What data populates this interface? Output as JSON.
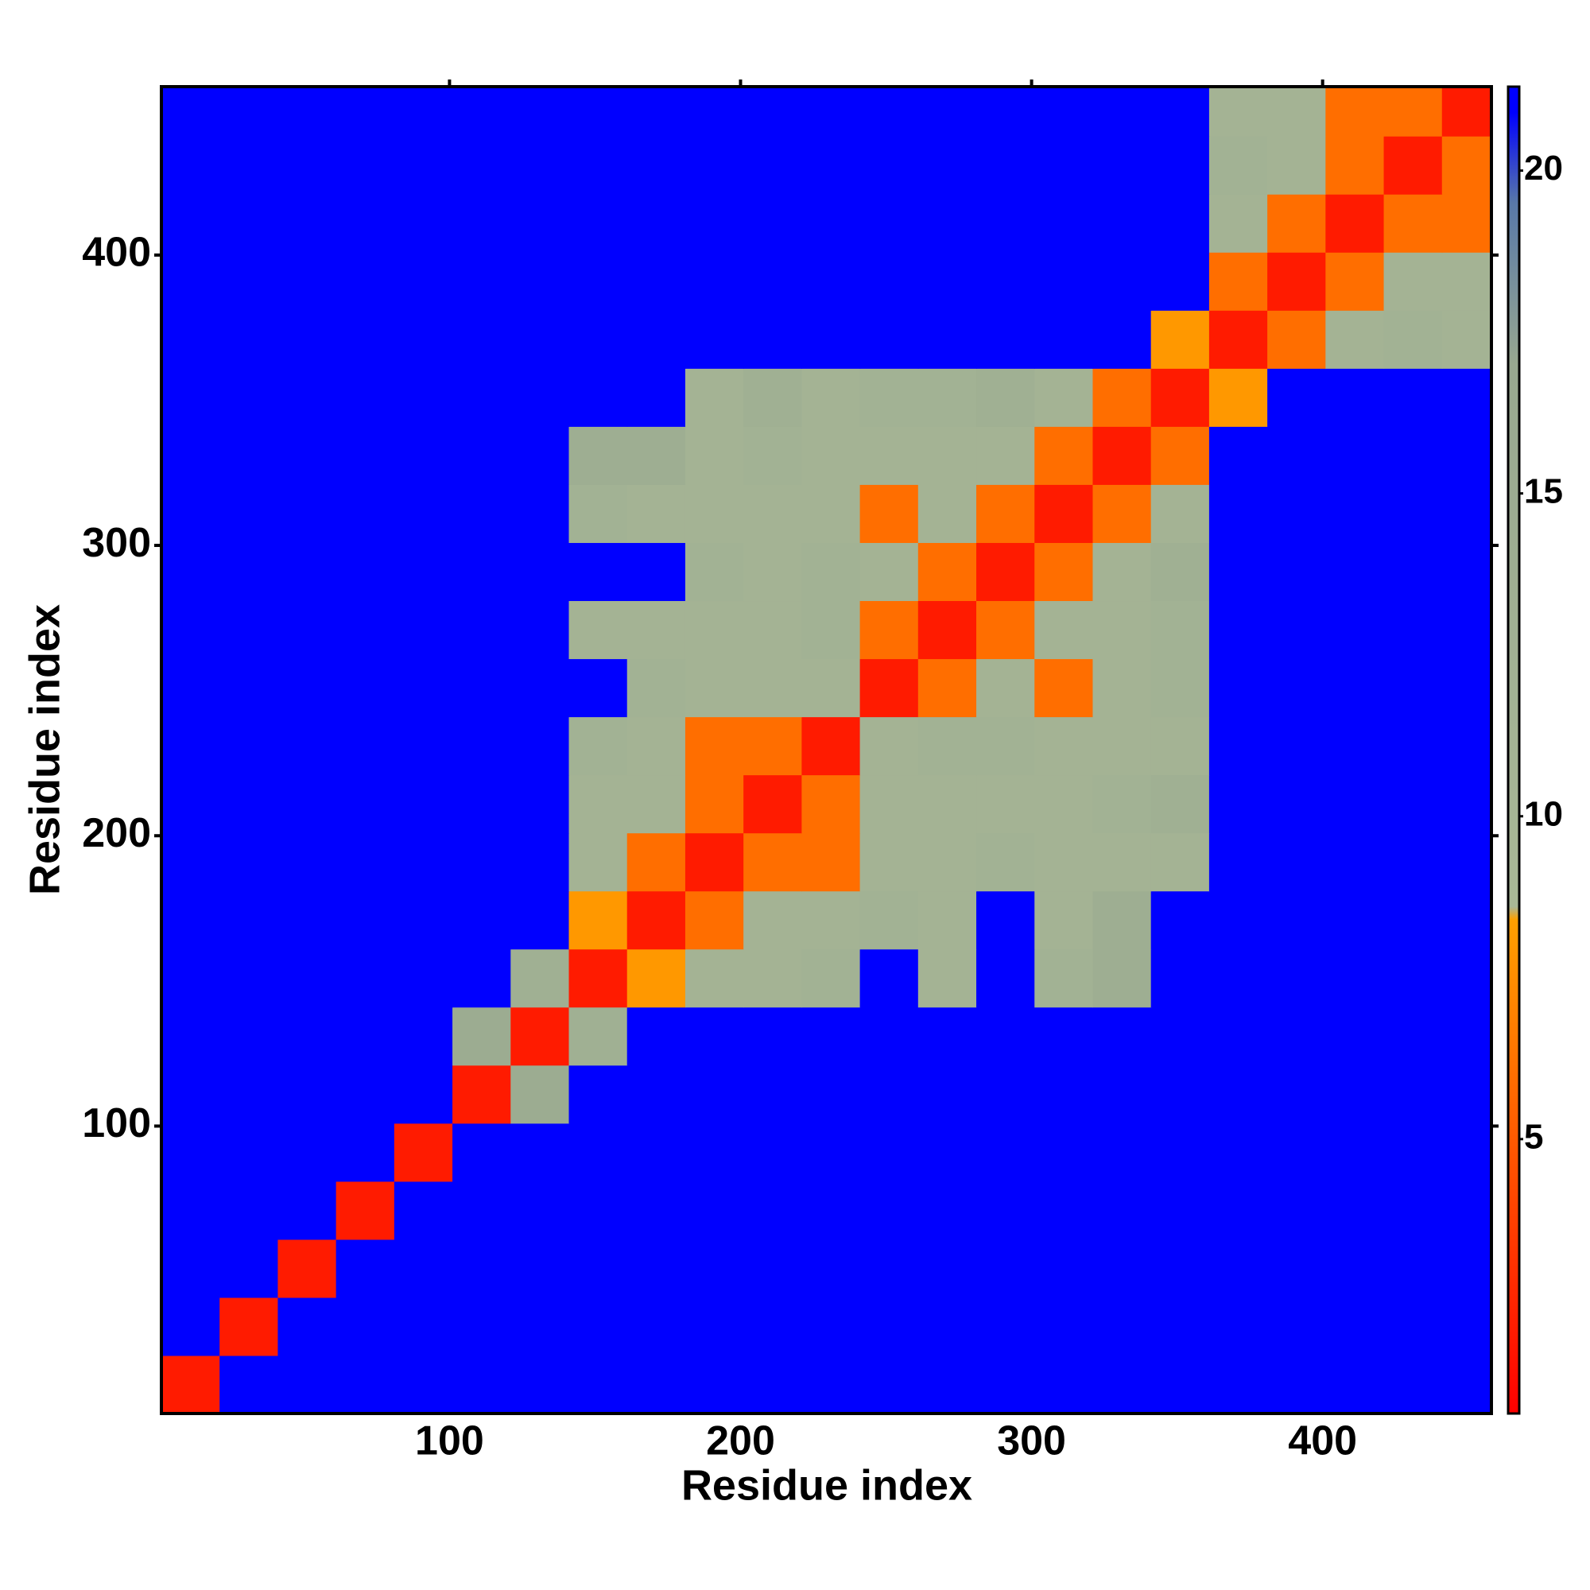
{
  "chart_data": {
    "type": "heatmap",
    "xlabel": "Residue index",
    "ylabel": "Residue index",
    "x": [
      1,
      21,
      41,
      61,
      81,
      101,
      121,
      141,
      161,
      181,
      201,
      221,
      241,
      261,
      281,
      301,
      321,
      341,
      361,
      381,
      401,
      421,
      441,
      458
    ],
    "y": [
      1,
      21,
      41,
      61,
      81,
      101,
      121,
      141,
      161,
      181,
      201,
      221,
      241,
      261,
      281,
      301,
      321,
      341,
      361,
      381,
      401,
      421,
      441,
      458
    ],
    "xlim": [
      1,
      458
    ],
    "ylim": [
      1,
      458
    ],
    "xticks": [
      100,
      200,
      300,
      400
    ],
    "yticks": [
      100,
      200,
      300,
      400
    ],
    "zlim": [
      0.75,
      21.3
    ],
    "zticks": [
      5,
      10,
      15,
      20
    ],
    "colorscale": [
      {
        "value": 0.75,
        "color": "#ff0000"
      },
      {
        "value": 3,
        "color": "#ff3000"
      },
      {
        "value": 8.4,
        "color": "#ffa000"
      },
      {
        "value": 8.6,
        "color": "#a9b896"
      },
      {
        "value": 17,
        "color": "#98a890"
      },
      {
        "value": 19.5,
        "color": "#5878a8"
      },
      {
        "value": 20.9,
        "color": "#0000ff"
      }
    ],
    "z": [
      [
        2,
        21,
        21,
        21,
        21,
        21,
        21,
        21,
        21,
        21,
        21,
        21,
        21,
        21,
        21,
        21,
        21,
        21,
        21,
        21,
        21,
        21,
        21
      ],
      [
        21,
        2,
        21,
        21,
        21,
        21,
        21,
        21,
        21,
        21,
        21,
        21,
        21,
        21,
        21,
        21,
        21,
        21,
        21,
        21,
        21,
        21,
        21
      ],
      [
        21,
        21,
        2,
        21,
        21,
        21,
        21,
        21,
        21,
        21,
        21,
        21,
        21,
        21,
        21,
        21,
        21,
        21,
        21,
        21,
        21,
        21,
        21
      ],
      [
        21,
        21,
        21,
        2,
        21,
        21,
        21,
        21,
        21,
        21,
        21,
        21,
        21,
        21,
        21,
        21,
        21,
        21,
        21,
        21,
        21,
        21,
        21
      ],
      [
        21,
        21,
        21,
        21,
        2,
        21,
        21,
        21,
        21,
        21,
        21,
        21,
        21,
        21,
        21,
        21,
        21,
        21,
        21,
        21,
        21,
        21,
        21
      ],
      [
        21,
        21,
        21,
        21,
        21,
        2,
        15,
        21,
        21,
        21,
        21,
        21,
        21,
        21,
        21,
        21,
        21,
        21,
        21,
        21,
        21,
        21,
        21
      ],
      [
        21,
        21,
        21,
        21,
        21,
        15,
        2,
        13,
        21,
        21,
        21,
        21,
        21,
        21,
        21,
        21,
        21,
        21,
        21,
        21,
        21,
        21,
        21
      ],
      [
        21,
        21,
        21,
        21,
        21,
        21,
        13,
        2,
        8,
        11,
        11,
        12,
        21,
        11,
        21,
        12,
        14,
        21,
        21,
        21,
        21,
        21,
        21
      ],
      [
        21,
        21,
        21,
        21,
        21,
        21,
        21,
        8,
        2,
        6,
        11,
        11,
        12,
        11,
        21,
        11,
        14,
        21,
        21,
        21,
        21,
        21,
        21
      ],
      [
        21,
        21,
        21,
        21,
        21,
        21,
        21,
        11,
        6,
        2,
        6,
        6,
        11,
        11,
        12,
        11,
        11,
        11,
        21,
        21,
        21,
        21,
        21
      ],
      [
        21,
        21,
        21,
        21,
        21,
        21,
        21,
        11,
        11,
        6,
        2,
        6,
        11,
        11,
        11,
        11,
        12,
        13,
        21,
        21,
        21,
        21,
        21
      ],
      [
        21,
        21,
        21,
        21,
        21,
        21,
        21,
        12,
        11,
        6,
        6,
        2,
        11,
        12,
        12,
        11,
        11,
        11,
        21,
        21,
        21,
        21,
        21
      ],
      [
        21,
        21,
        21,
        21,
        21,
        21,
        21,
        21,
        12,
        11,
        11,
        11,
        2,
        6,
        11,
        6,
        11,
        12,
        21,
        21,
        21,
        21,
        21
      ],
      [
        21,
        21,
        21,
        21,
        21,
        21,
        21,
        11,
        11,
        11,
        11,
        12,
        6,
        2,
        6,
        11,
        11,
        12,
        21,
        21,
        21,
        21,
        21
      ],
      [
        21,
        21,
        21,
        21,
        21,
        21,
        21,
        21,
        21,
        12,
        11,
        12,
        11,
        6,
        2,
        6,
        11,
        13,
        21,
        21,
        21,
        21,
        21
      ],
      [
        21,
        21,
        21,
        21,
        21,
        21,
        21,
        12,
        11,
        11,
        11,
        11,
        6,
        11,
        6,
        2,
        6,
        11,
        21,
        21,
        21,
        21,
        21
      ],
      [
        21,
        21,
        21,
        21,
        21,
        21,
        21,
        14,
        14,
        11,
        12,
        11,
        11,
        11,
        11,
        6,
        2,
        6,
        21,
        21,
        21,
        21,
        21
      ],
      [
        21,
        21,
        21,
        21,
        21,
        21,
        21,
        21,
        21,
        11,
        13,
        11,
        12,
        12,
        13,
        11,
        6,
        2,
        8,
        21,
        21,
        21,
        21
      ],
      [
        21,
        21,
        21,
        21,
        21,
        21,
        21,
        21,
        21,
        21,
        21,
        21,
        21,
        21,
        21,
        21,
        21,
        8,
        2,
        6,
        11,
        12,
        11
      ],
      [
        21,
        21,
        21,
        21,
        21,
        21,
        21,
        21,
        21,
        21,
        21,
        21,
        21,
        21,
        21,
        21,
        21,
        21,
        6,
        2,
        6,
        11,
        11
      ],
      [
        21,
        21,
        21,
        21,
        21,
        21,
        21,
        21,
        21,
        21,
        21,
        21,
        21,
        21,
        21,
        21,
        21,
        21,
        11,
        6,
        2,
        6,
        6
      ],
      [
        21,
        21,
        21,
        21,
        21,
        21,
        21,
        21,
        21,
        21,
        21,
        21,
        21,
        21,
        21,
        21,
        21,
        21,
        12,
        11,
        6,
        2,
        6
      ],
      [
        21,
        21,
        21,
        21,
        21,
        21,
        21,
        21,
        21,
        21,
        21,
        21,
        21,
        21,
        21,
        21,
        21,
        21,
        11,
        11,
        6,
        6,
        2
      ]
    ]
  }
}
